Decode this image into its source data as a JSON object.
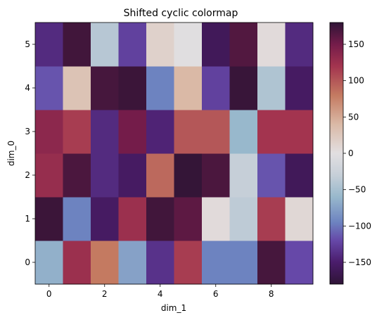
{
  "chart_data": {
    "type": "heatmap",
    "title": "Shifted cyclic colormap",
    "xlabel": "dim_1",
    "ylabel": "dim_0",
    "x_ticks": [
      "0",
      "2",
      "4",
      "6",
      "8"
    ],
    "y_ticks": [
      "0",
      "1",
      "2",
      "3",
      "4",
      "5"
    ],
    "colorbar": {
      "range": [
        -180,
        180
      ],
      "ticks": [
        "150",
        "100",
        "50",
        "0",
        "−50",
        "−100",
        "−150"
      ],
      "tick_values": [
        150,
        100,
        50,
        0,
        -50,
        -100,
        -150
      ]
    },
    "cmap_stops": [
      [
        -180,
        "#2f1436"
      ],
      [
        -150,
        "#4a1c6b"
      ],
      [
        -120,
        "#6648a8"
      ],
      [
        -95,
        "#6d83c0"
      ],
      [
        -60,
        "#98b8cc"
      ],
      [
        -30,
        "#c6cfd8"
      ],
      [
        0,
        "#e2dfe1"
      ],
      [
        40,
        "#dab9a6"
      ],
      [
        80,
        "#c47a61"
      ],
      [
        120,
        "#a3344f"
      ],
      [
        150,
        "#741c4a"
      ],
      [
        180,
        "#2f1436"
      ]
    ],
    "values": [
      [
        -65,
        125,
        80,
        -75,
        -135,
        115,
        -95,
        -95,
        170,
        -120
      ],
      [
        175,
        -95,
        -155,
        125,
        172,
        160,
        5,
        -35,
        115,
        8
      ],
      [
        128,
        168,
        -140,
        -155,
        90,
        178,
        168,
        -30,
        -115,
        -160
      ],
      [
        135,
        115,
        -140,
        150,
        -145,
        100,
        100,
        -60,
        120,
        120
      ],
      [
        -115,
        30,
        170,
        175,
        -95,
        40,
        -125,
        176,
        -45,
        -155
      ],
      [
        -140,
        172,
        -40,
        -125,
        15,
        -2,
        -160,
        165,
        5,
        -140
      ]
    ]
  }
}
